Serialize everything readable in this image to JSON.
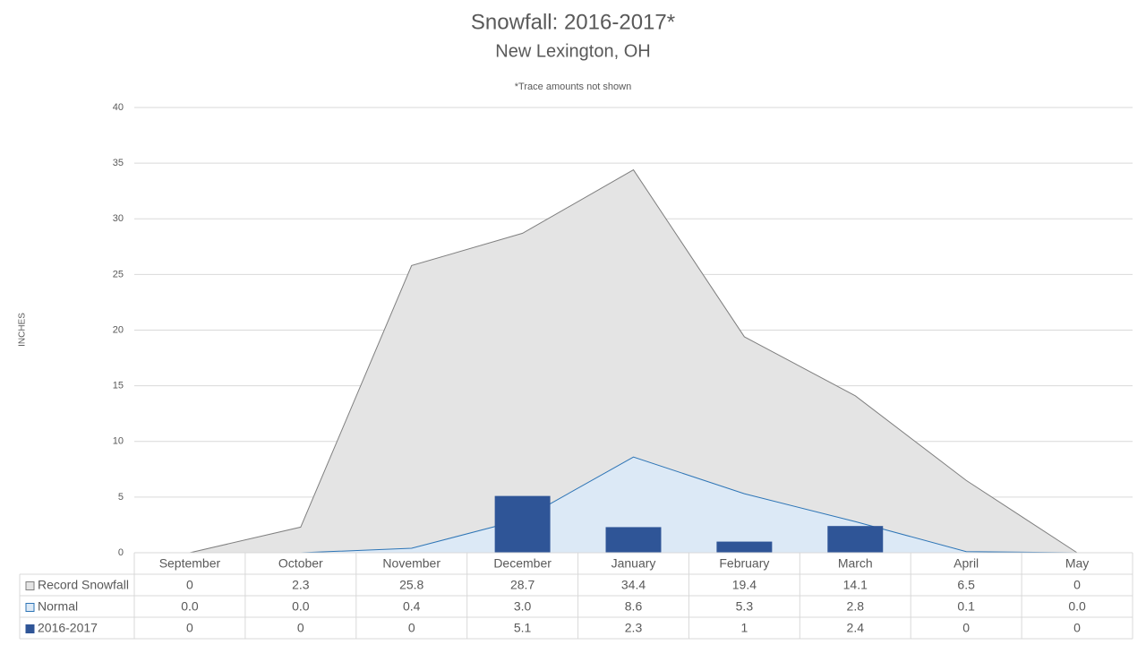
{
  "chart_data": {
    "type": "combo",
    "title": "Snowfall: 2016-2017*",
    "subtitle": "New Lexington, OH",
    "note": "*Trace amounts not shown",
    "y_label": "INCHES",
    "categories": [
      "September",
      "October",
      "November",
      "December",
      "January",
      "February",
      "March",
      "April",
      "May"
    ],
    "series": [
      {
        "name": "Record Snowfall",
        "type": "area",
        "color": "#e4e4e4",
        "line_color": "#7f7f7f",
        "values": [
          0,
          2.3,
          25.8,
          28.7,
          34.4,
          19.4,
          14.1,
          6.5,
          0
        ]
      },
      {
        "name": "Normal",
        "type": "area",
        "color": "#dce9f6",
        "line_color": "#2e75b6",
        "values": [
          0,
          0,
          0.4,
          3.0,
          8.6,
          5.3,
          2.8,
          0.1,
          0
        ],
        "value_labels": [
          "0.0",
          "0.0",
          "0.4",
          "3.0",
          "8.6",
          "5.3",
          "2.8",
          "0.1",
          "0.0"
        ]
      },
      {
        "name": "2016-2017",
        "type": "bar",
        "color": "#2f5597",
        "values": [
          0,
          0,
          0,
          5.1,
          2.3,
          1,
          2.4,
          0,
          0
        ]
      }
    ],
    "ylim": [
      0,
      40
    ],
    "yticks": [
      0,
      5,
      10,
      15,
      20,
      25,
      30,
      35,
      40
    ],
    "grid": true,
    "data_table": true
  }
}
